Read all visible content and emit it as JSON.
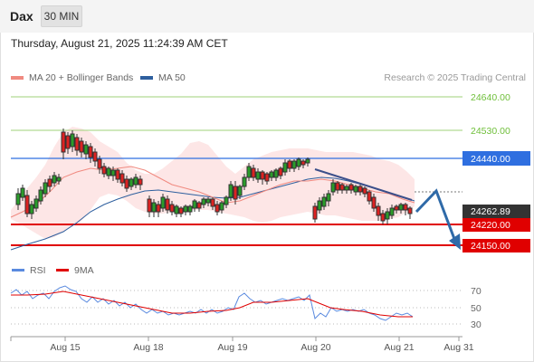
{
  "header": {
    "instrument": "Dax",
    "interval": "30 MIN",
    "datetime": "Thursday, August 21, 2025 11:24:39 AM CET"
  },
  "legend": {
    "ma20": {
      "label": "MA 20 + Bollinger Bands",
      "color": "#f08a80"
    },
    "ma50": {
      "label": "MA 50",
      "color": "#2e5f9e"
    },
    "rsi": {
      "label": "RSI",
      "color": "#5a8adf"
    },
    "ma9": {
      "label": "9MA",
      "color": "#e00000"
    },
    "copyright": "Research © 2025 Trading Central"
  },
  "price_levels": [
    {
      "label": "24640.00",
      "color": "#6fbf3a",
      "style": "text"
    },
    {
      "label": "24530.00",
      "color": "#6fbf3a",
      "style": "text"
    },
    {
      "label": "24440.00",
      "color": "#2f6fe0",
      "style": "box"
    },
    {
      "label": "24262.89",
      "color": "#333333",
      "style": "box"
    },
    {
      "label": "24220.00",
      "color": "#e00000",
      "style": "box"
    },
    {
      "label": "24150.00",
      "color": "#e00000",
      "style": "box"
    }
  ],
  "rsi_levels": [
    "70",
    "50",
    "30"
  ],
  "x_axis": [
    "Aug 15",
    "Aug 18",
    "Aug 19",
    "Aug 20",
    "Aug 21",
    "Aug 31"
  ]
}
